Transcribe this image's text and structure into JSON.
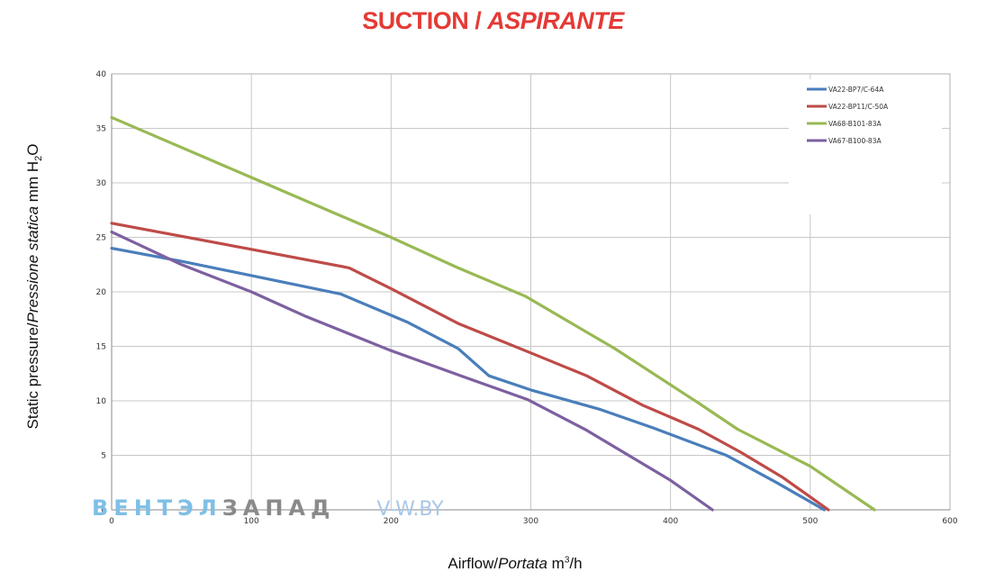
{
  "title": {
    "main": "SUCTION / ",
    "italic": "ASPIRANTE"
  },
  "axes": {
    "y_label_plain": "Static pressure/",
    "y_label_italic": "Pressione statica",
    "y_label_unit": " mm  H",
    "y_label_sub": "2",
    "y_label_tail": "O",
    "x_label_plain": "Airflow/",
    "x_label_italic": "Portata",
    "x_label_unit": "  m",
    "x_label_sup": "3",
    "x_label_tail": "/h"
  },
  "watermark": {
    "part1": "ВЕНТЭЛ",
    "part2": "ЗАПАД",
    "part3": "V-W.BY"
  },
  "chart_data": {
    "type": "line",
    "title": "SUCTION / ASPIRANTE",
    "xlabel": "Airflow/Portata m3/h",
    "ylabel": "Static pressure/Pressione statica mm H2O",
    "xlim": [
      0,
      600
    ],
    "ylim": [
      0,
      40
    ],
    "xticks": [
      0,
      100,
      200,
      300,
      400,
      500,
      600
    ],
    "yticks": [
      0,
      5,
      10,
      15,
      20,
      25,
      30,
      35,
      40
    ],
    "grid": true,
    "legend_position": "top-right",
    "series": [
      {
        "name": "VA22-BP7/C-64A",
        "color": "#4a7ebb",
        "x": [
          0,
          50,
          100,
          164,
          212,
          248,
          270,
          300,
          350,
          388,
          440,
          476,
          510
        ],
        "y": [
          24.0,
          22.8,
          21.5,
          19.8,
          17.2,
          14.8,
          12.3,
          11.0,
          9.2,
          7.5,
          5.0,
          2.5,
          0
        ]
      },
      {
        "name": "VA22-BP11/C-50A",
        "color": "#be4b48",
        "x": [
          0,
          100,
          170,
          200,
          248,
          300,
          340,
          380,
          420,
          450,
          480,
          513
        ],
        "y": [
          26.3,
          23.9,
          22.2,
          20.3,
          17.1,
          14.4,
          12.3,
          9.6,
          7.4,
          5.3,
          3.0,
          0
        ]
      },
      {
        "name": "VA68-B101-83A",
        "color": "#98b954",
        "x": [
          0,
          100,
          200,
          248,
          296,
          360,
          420,
          448,
          500,
          546
        ],
        "y": [
          36.0,
          30.5,
          25.0,
          22.2,
          19.6,
          14.8,
          9.8,
          7.4,
          4.0,
          0
        ]
      },
      {
        "name": "VA67-B100-83A",
        "color": "#7d60a0",
        "x": [
          0,
          50,
          100,
          138,
          200,
          250,
          298,
          340,
          400,
          430
        ],
        "y": [
          25.5,
          22.5,
          20.0,
          17.8,
          14.6,
          12.3,
          10.1,
          7.3,
          2.7,
          0
        ]
      }
    ]
  }
}
